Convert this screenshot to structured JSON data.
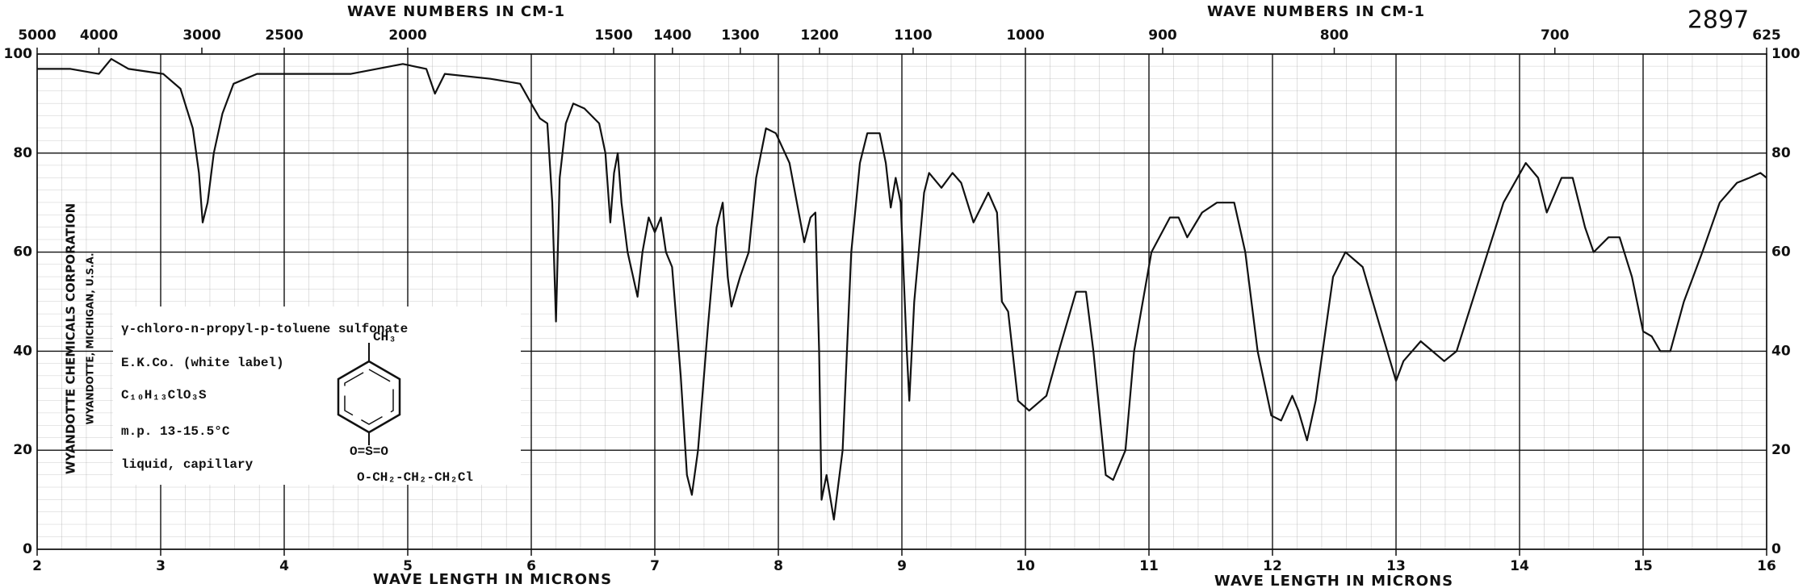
{
  "chart_data": {
    "type": "line",
    "x2label": "WAVE NUMBERS IN CM-1",
    "xlabel": "WAVE LENGTH IN MICRONS",
    "spectrum_number": "2897",
    "side_text": [
      "WYANDOTTE CHEMICALS CORPORATION",
      "WYANDOTTE, MICHIGAN, U.S.A."
    ],
    "annotations": [
      "γ-chloro-n-propyl-p-toluene sulfonate",
      "E.K.Co. (white label)",
      "C₁₀H₁₃ClO₃S",
      "m.p. 13-15.5°C",
      "liquid, capillary"
    ],
    "structure_labels": [
      "CH₃",
      "O=S=O",
      "O-CH₂-CH₂-CH₂Cl"
    ],
    "color": "#111111",
    "grid": true,
    "xlim": [
      2,
      16
    ],
    "xticks": [
      2,
      3,
      4,
      5,
      6,
      7,
      8,
      9,
      10,
      11,
      12,
      13,
      14,
      15,
      16
    ],
    "x2_scale": "reciprocal",
    "x2_factor": 10000,
    "x2ticks": [
      5000,
      4000,
      3000,
      2500,
      2000,
      1500,
      1400,
      1300,
      1200,
      1100,
      1000,
      900,
      800,
      700,
      625
    ],
    "ylim": [
      0,
      100
    ],
    "yticks": [
      0,
      20,
      40,
      60,
      80,
      100
    ],
    "x": [
      2.0,
      2.27,
      2.5,
      2.6,
      2.74,
      3.02,
      3.16,
      3.26,
      3.31,
      3.34,
      3.38,
      3.43,
      3.5,
      3.59,
      3.78,
      4.16,
      4.54,
      4.96,
      5.15,
      5.22,
      5.3,
      5.67,
      5.91,
      6.0,
      6.07,
      6.13,
      6.17,
      6.2,
      6.23,
      6.28,
      6.34,
      6.43,
      6.55,
      6.6,
      6.64,
      6.67,
      6.7,
      6.73,
      6.78,
      6.86,
      6.9,
      6.95,
      7.0,
      7.05,
      7.09,
      7.14,
      7.21,
      7.26,
      7.3,
      7.35,
      7.43,
      7.5,
      7.55,
      7.59,
      7.62,
      7.69,
      7.76,
      7.82,
      7.9,
      7.98,
      8.09,
      8.21,
      8.26,
      8.3,
      8.33,
      8.35,
      8.39,
      8.45,
      8.52,
      8.59,
      8.66,
      8.72,
      8.82,
      8.87,
      8.91,
      8.95,
      8.99,
      9.04,
      9.06,
      9.1,
      9.18,
      9.22,
      9.32,
      9.41,
      9.48,
      9.58,
      9.7,
      9.77,
      9.81,
      9.86,
      9.94,
      10.03,
      10.17,
      10.27,
      10.41,
      10.49,
      10.55,
      10.65,
      10.71,
      10.81,
      10.88,
      11.02,
      11.17,
      11.24,
      11.31,
      11.43,
      11.55,
      11.69,
      11.78,
      11.88,
      11.99,
      12.07,
      12.16,
      12.21,
      12.28,
      12.35,
      12.49,
      12.59,
      12.73,
      12.87,
      13.0,
      13.06,
      13.2,
      13.39,
      13.49,
      13.68,
      13.87,
      14.05,
      14.15,
      14.22,
      14.34,
      14.43,
      14.53,
      14.6,
      14.72,
      14.81,
      14.91,
      15.0,
      15.07,
      15.14,
      15.22,
      15.33,
      15.48,
      15.62,
      15.76,
      15.86,
      15.95,
      16.0
    ],
    "values": [
      97,
      97,
      96,
      99,
      97,
      96,
      93,
      85,
      76,
      66,
      70,
      80,
      88,
      94,
      96,
      96,
      96,
      98,
      97,
      92,
      96,
      95,
      94,
      90,
      87,
      86,
      70,
      46,
      75,
      86,
      90,
      89,
      86,
      80,
      66,
      76,
      80,
      70,
      60,
      51,
      60,
      67,
      64,
      67,
      60,
      57,
      35,
      15,
      11,
      20,
      45,
      65,
      70,
      55,
      49,
      55,
      60,
      75,
      85,
      84,
      78,
      62,
      67,
      68,
      40,
      10,
      15,
      6,
      20,
      60,
      78,
      84,
      84,
      78,
      69,
      75,
      70,
      40,
      30,
      50,
      72,
      76,
      73,
      76,
      74,
      66,
      72,
      68,
      50,
      48,
      30,
      28,
      31,
      40,
      52,
      52,
      40,
      15,
      14,
      20,
      40,
      60,
      67,
      67,
      63,
      68,
      70,
      70,
      60,
      40,
      27,
      26,
      31,
      28,
      22,
      30,
      55,
      60,
      57,
      45,
      34,
      38,
      42,
      38,
      40,
      55,
      70,
      78,
      75,
      68,
      75,
      75,
      65,
      60,
      63,
      63,
      55,
      44,
      43,
      40,
      40,
      50,
      60,
      70,
      74,
      75,
      76,
      75
    ]
  }
}
